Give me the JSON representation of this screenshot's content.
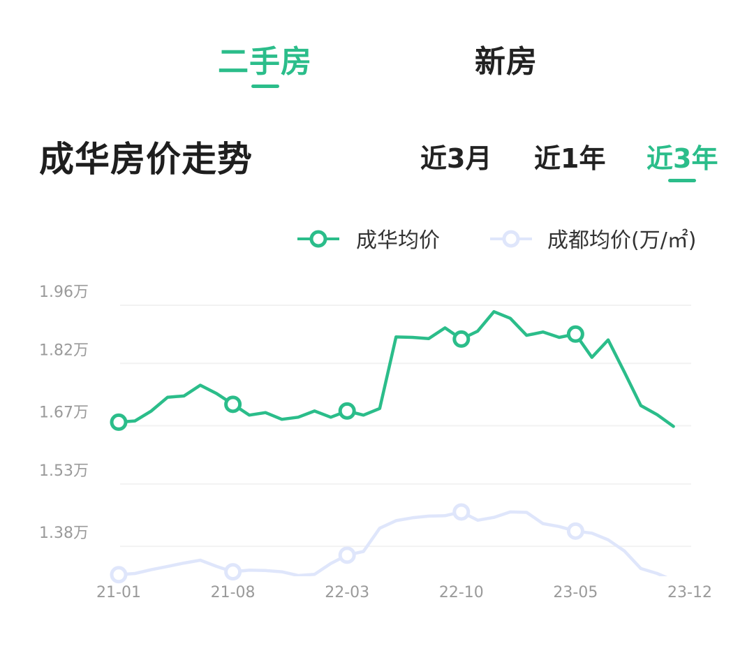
{
  "tabs": [
    {
      "label": "二手房",
      "active": true
    },
    {
      "label": "新房",
      "active": false
    }
  ],
  "title": "成华房价走势",
  "ranges": [
    {
      "label": "近3月",
      "active": false
    },
    {
      "label": "近1年",
      "active": false
    },
    {
      "label": "近3年",
      "active": true
    }
  ],
  "colors": {
    "accent": "#2bbd8a",
    "secondary": "#dfe6fb",
    "grid": "#f2f2f2",
    "tick": "#9a9a9a"
  },
  "chart_data": {
    "type": "line",
    "series": [
      {
        "name": "成华均价",
        "color": "#2bbd8a",
        "values": [
          1.645,
          1.648,
          1.672,
          1.705,
          1.708,
          1.734,
          1.714,
          1.688,
          1.662,
          1.668,
          1.652,
          1.657,
          1.672,
          1.657,
          1.672,
          1.662,
          1.678,
          1.85,
          1.849,
          1.846,
          1.872,
          1.845,
          1.864,
          1.911,
          1.895,
          1.854,
          1.862,
          1.849,
          1.857,
          1.801,
          1.843,
          1.765,
          1.685,
          1.663,
          1.635
        ],
        "markers": [
          0,
          7,
          14,
          21,
          28
        ]
      },
      {
        "name": "成都均价(万/㎡)",
        "color": "#dfe6fb",
        "values": [
          1.278,
          1.281,
          1.29,
          1.298,
          1.306,
          1.313,
          1.298,
          1.285,
          1.289,
          1.288,
          1.285,
          1.276,
          1.279,
          1.305,
          1.325,
          1.334,
          1.39,
          1.408,
          1.415,
          1.419,
          1.42,
          1.429,
          1.409,
          1.416,
          1.429,
          1.428,
          1.401,
          1.394,
          1.383,
          1.378,
          1.362,
          1.335,
          1.293,
          1.281,
          1.264
        ],
        "markers": [
          0,
          7,
          14,
          21,
          28
        ]
      }
    ],
    "legend_position": "top-right",
    "y_ticks": [
      {
        "value": 1.96,
        "label": "1.96万"
      },
      {
        "value": 1.82,
        "label": "1.82万"
      },
      {
        "value": 1.67,
        "label": "1.67万"
      },
      {
        "value": 1.53,
        "label": "1.53万"
      },
      {
        "value": 1.38,
        "label": "1.38万"
      }
    ],
    "x_ticks": [
      {
        "index": 0,
        "label": "21-01"
      },
      {
        "index": 7,
        "label": "21-08"
      },
      {
        "index": 14,
        "label": "22-03"
      },
      {
        "index": 21,
        "label": "22-10"
      },
      {
        "index": 28,
        "label": "23-05"
      },
      {
        "index": 35,
        "label": "23-12"
      }
    ],
    "grid": true,
    "title": "",
    "xlabel": "",
    "ylabel": ""
  }
}
